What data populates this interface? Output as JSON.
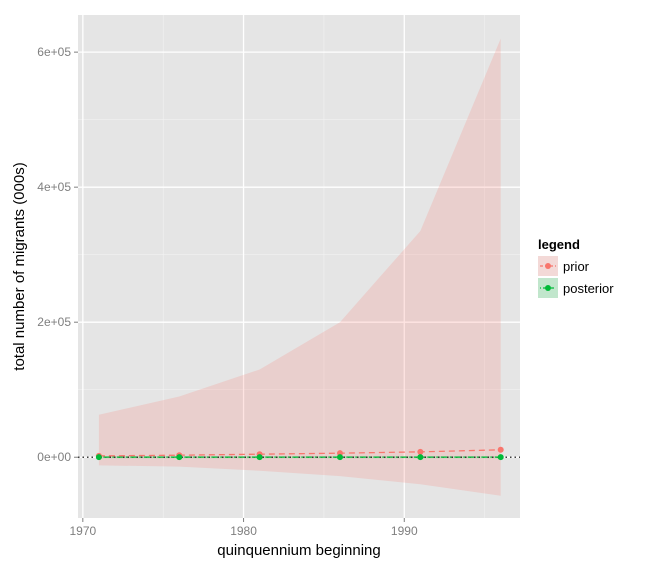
{
  "chart_data": {
    "type": "line",
    "xlabel": "quinquennium beginning",
    "ylabel": "total number of migrants (000s)",
    "x_ticks": [
      1970,
      1980,
      1990
    ],
    "x_tick_labels": [
      "1970",
      "1980",
      "1990"
    ],
    "y_ticks": [
      0,
      200000,
      400000,
      600000
    ],
    "y_tick_labels": [
      "0e+00",
      "2e+05",
      "4e+05",
      "6e+05"
    ],
    "xlim": [
      1969.7,
      1997.2
    ],
    "ylim": [
      -90000,
      655000
    ],
    "grid": true,
    "reference_line": {
      "y": 0,
      "style": "dotted"
    },
    "legend": {
      "title": "legend",
      "position": "right",
      "entries": [
        "prior",
        "posterior"
      ]
    },
    "x": [
      1971,
      1976,
      1981,
      1986,
      1991,
      1996
    ],
    "series": [
      {
        "name": "prior",
        "color": "#F8766D",
        "line_style": "dashed",
        "values": [
          2000,
          3000,
          4500,
          6000,
          8000,
          11000
        ],
        "lower": [
          -12000,
          -14000,
          -20000,
          -28000,
          -40000,
          -57000
        ],
        "upper": [
          63000,
          90000,
          130000,
          200000,
          335000,
          620000
        ]
      },
      {
        "name": "posterior",
        "color": "#00BA38",
        "line_style": "dotdash",
        "values": [
          200,
          200,
          200,
          200,
          200,
          200
        ],
        "lower": [
          -1500,
          -1500,
          -1500,
          -1500,
          -1500,
          -1500
        ],
        "upper": [
          1500,
          1500,
          1500,
          1500,
          1500,
          1500
        ]
      }
    ]
  }
}
